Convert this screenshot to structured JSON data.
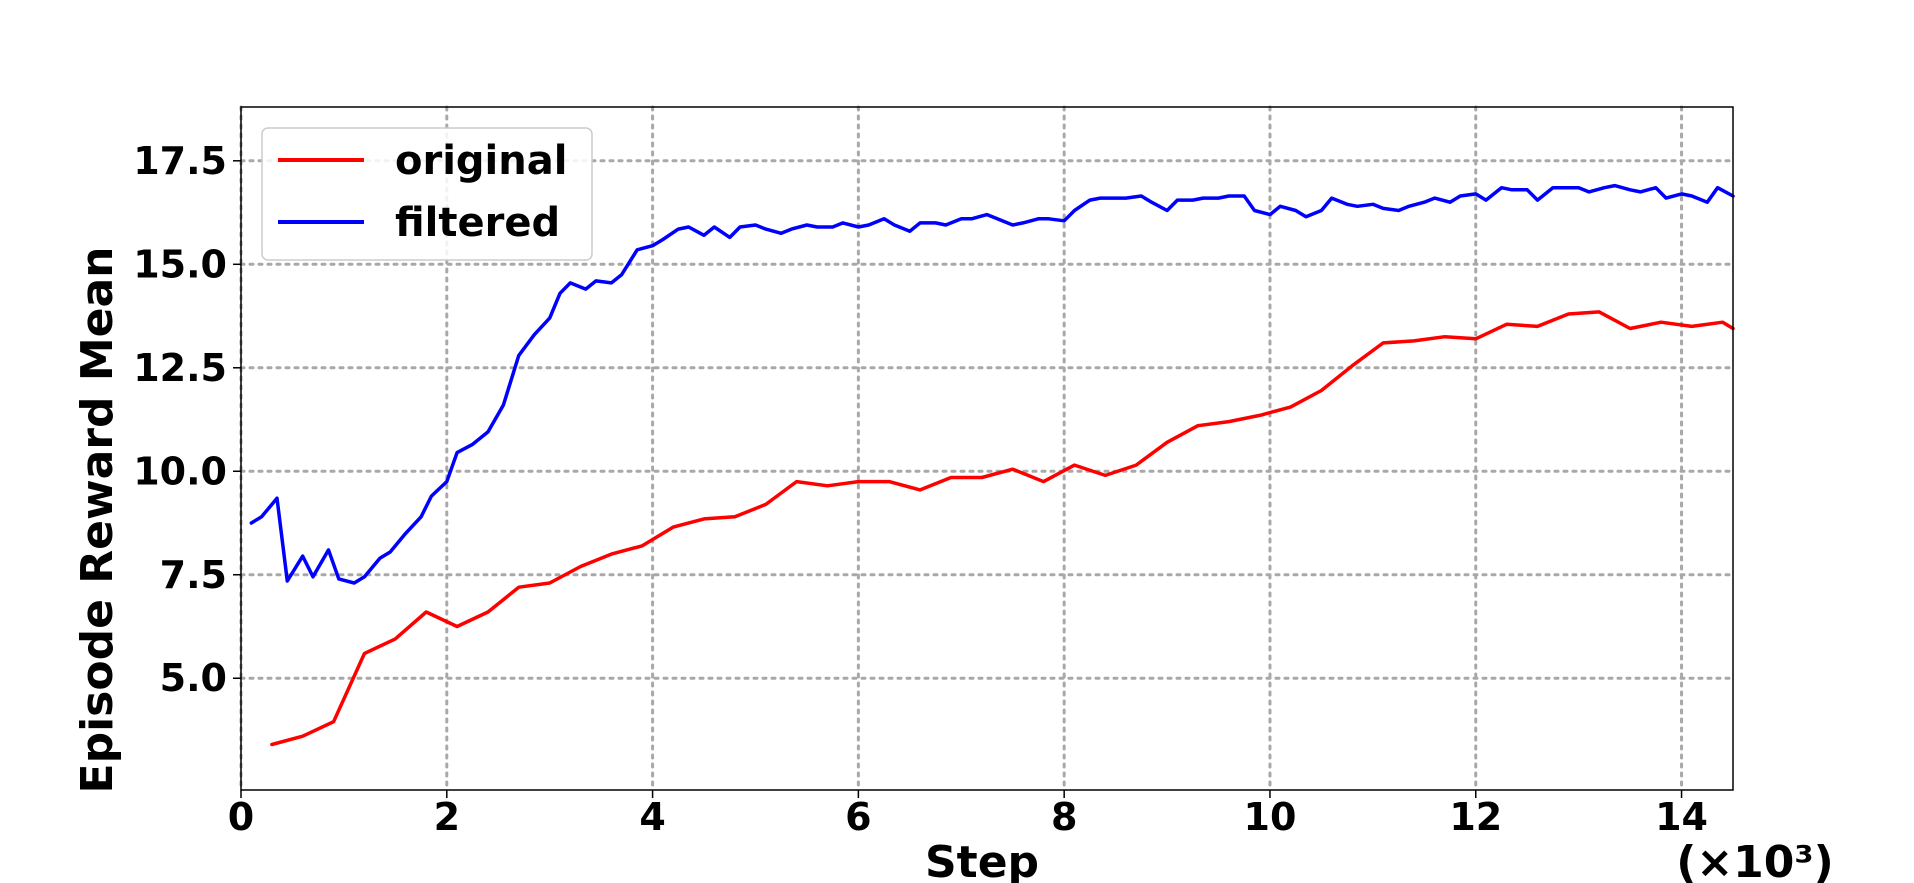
{
  "chart_data": {
    "type": "line",
    "xlabel": "Step",
    "x_multiplier": "(×10³)",
    "ylabel": "Episode Reward Mean",
    "xlim": [
      0,
      14.5
    ],
    "ylim": [
      2.3,
      18.8
    ],
    "xticks": [
      0,
      2,
      4,
      6,
      8,
      10,
      12,
      14
    ],
    "xtick_labels": [
      "0",
      "2",
      "4",
      "6",
      "8",
      "10",
      "12",
      "14"
    ],
    "yticks": [
      5.0,
      7.5,
      10.0,
      12.5,
      15.0,
      17.5
    ],
    "ytick_labels": [
      "5.0",
      "7.5",
      "10.0",
      "12.5",
      "15.0",
      "17.5"
    ],
    "grid": true,
    "legend_position": "top-left",
    "series": [
      {
        "name": "original",
        "color": "#ff0000",
        "x": [
          0.3,
          0.6,
          0.9,
          1.2,
          1.5,
          1.8,
          2.1,
          2.4,
          2.7,
          3.0,
          3.3,
          3.6,
          3.9,
          4.2,
          4.5,
          4.8,
          5.1,
          5.4,
          5.7,
          6.0,
          6.3,
          6.6,
          6.9,
          7.2,
          7.5,
          7.8,
          8.1,
          8.4,
          8.7,
          9.0,
          9.3,
          9.6,
          9.9,
          10.2,
          10.5,
          10.8,
          11.1,
          11.4,
          11.7,
          12.0,
          12.3,
          12.6,
          12.9,
          13.2,
          13.5,
          13.8,
          14.1,
          14.4,
          14.5
        ],
        "y": [
          3.4,
          3.6,
          3.95,
          5.6,
          5.95,
          6.6,
          6.25,
          6.6,
          7.2,
          7.3,
          7.7,
          8.0,
          8.2,
          8.65,
          8.85,
          8.9,
          9.2,
          9.75,
          9.65,
          9.75,
          9.75,
          9.55,
          9.85,
          9.85,
          10.05,
          9.75,
          10.15,
          9.9,
          10.15,
          10.7,
          11.1,
          11.2,
          11.35,
          11.55,
          11.95,
          12.55,
          13.1,
          13.15,
          13.25,
          13.2,
          13.55,
          13.5,
          13.8,
          13.85,
          13.45,
          13.6,
          13.5,
          13.6,
          13.45
        ]
      },
      {
        "name": "filtered",
        "color": "#0000ff",
        "x": [
          0.1,
          0.2,
          0.35,
          0.45,
          0.6,
          0.7,
          0.85,
          0.95,
          1.1,
          1.2,
          1.35,
          1.45,
          1.6,
          1.75,
          1.85,
          2.0,
          2.1,
          2.25,
          2.4,
          2.55,
          2.7,
          2.85,
          3.0,
          3.1,
          3.2,
          3.35,
          3.45,
          3.6,
          3.7,
          3.85,
          4.0,
          4.1,
          4.25,
          4.35,
          4.5,
          4.6,
          4.75,
          4.85,
          5.0,
          5.1,
          5.25,
          5.35,
          5.5,
          5.6,
          5.75,
          5.85,
          6.0,
          6.1,
          6.25,
          6.35,
          6.5,
          6.6,
          6.75,
          6.85,
          7.0,
          7.1,
          7.25,
          7.35,
          7.5,
          7.6,
          7.75,
          7.85,
          8.0,
          8.1,
          8.25,
          8.35,
          8.5,
          8.6,
          8.75,
          8.85,
          9.0,
          9.1,
          9.25,
          9.35,
          9.5,
          9.6,
          9.75,
          9.85,
          10.0,
          10.1,
          10.25,
          10.35,
          10.5,
          10.6,
          10.75,
          10.85,
          11.0,
          11.1,
          11.25,
          11.35,
          11.5,
          11.6,
          11.75,
          11.85,
          12.0,
          12.1,
          12.25,
          12.35,
          12.5,
          12.6,
          12.75,
          12.85,
          13.0,
          13.1,
          13.25,
          13.35,
          13.5,
          13.6,
          13.75,
          13.85,
          14.0,
          14.1,
          14.25,
          14.35,
          14.5
        ],
        "y": [
          8.75,
          8.9,
          9.35,
          7.35,
          7.95,
          7.45,
          8.1,
          7.4,
          7.3,
          7.45,
          7.9,
          8.05,
          8.5,
          8.9,
          9.4,
          9.75,
          10.45,
          10.65,
          10.95,
          11.6,
          12.8,
          13.3,
          13.7,
          14.3,
          14.55,
          14.4,
          14.6,
          14.55,
          14.75,
          15.35,
          15.45,
          15.6,
          15.85,
          15.9,
          15.7,
          15.9,
          15.65,
          15.9,
          15.95,
          15.85,
          15.75,
          15.85,
          15.95,
          15.9,
          15.9,
          16.0,
          15.9,
          15.95,
          16.1,
          15.95,
          15.8,
          16.0,
          16.0,
          15.95,
          16.1,
          16.1,
          16.2,
          16.1,
          15.95,
          16.0,
          16.1,
          16.1,
          16.05,
          16.3,
          16.55,
          16.6,
          16.6,
          16.6,
          16.65,
          16.5,
          16.3,
          16.55,
          16.55,
          16.6,
          16.6,
          16.65,
          16.65,
          16.3,
          16.2,
          16.4,
          16.3,
          16.15,
          16.3,
          16.6,
          16.45,
          16.4,
          16.45,
          16.35,
          16.3,
          16.4,
          16.5,
          16.6,
          16.5,
          16.65,
          16.7,
          16.55,
          16.85,
          16.8,
          16.8,
          16.55,
          16.85,
          16.85,
          16.85,
          16.75,
          16.85,
          16.9,
          16.8,
          16.75,
          16.85,
          16.6,
          16.7,
          16.65,
          16.5,
          16.85,
          16.65
        ]
      }
    ]
  }
}
